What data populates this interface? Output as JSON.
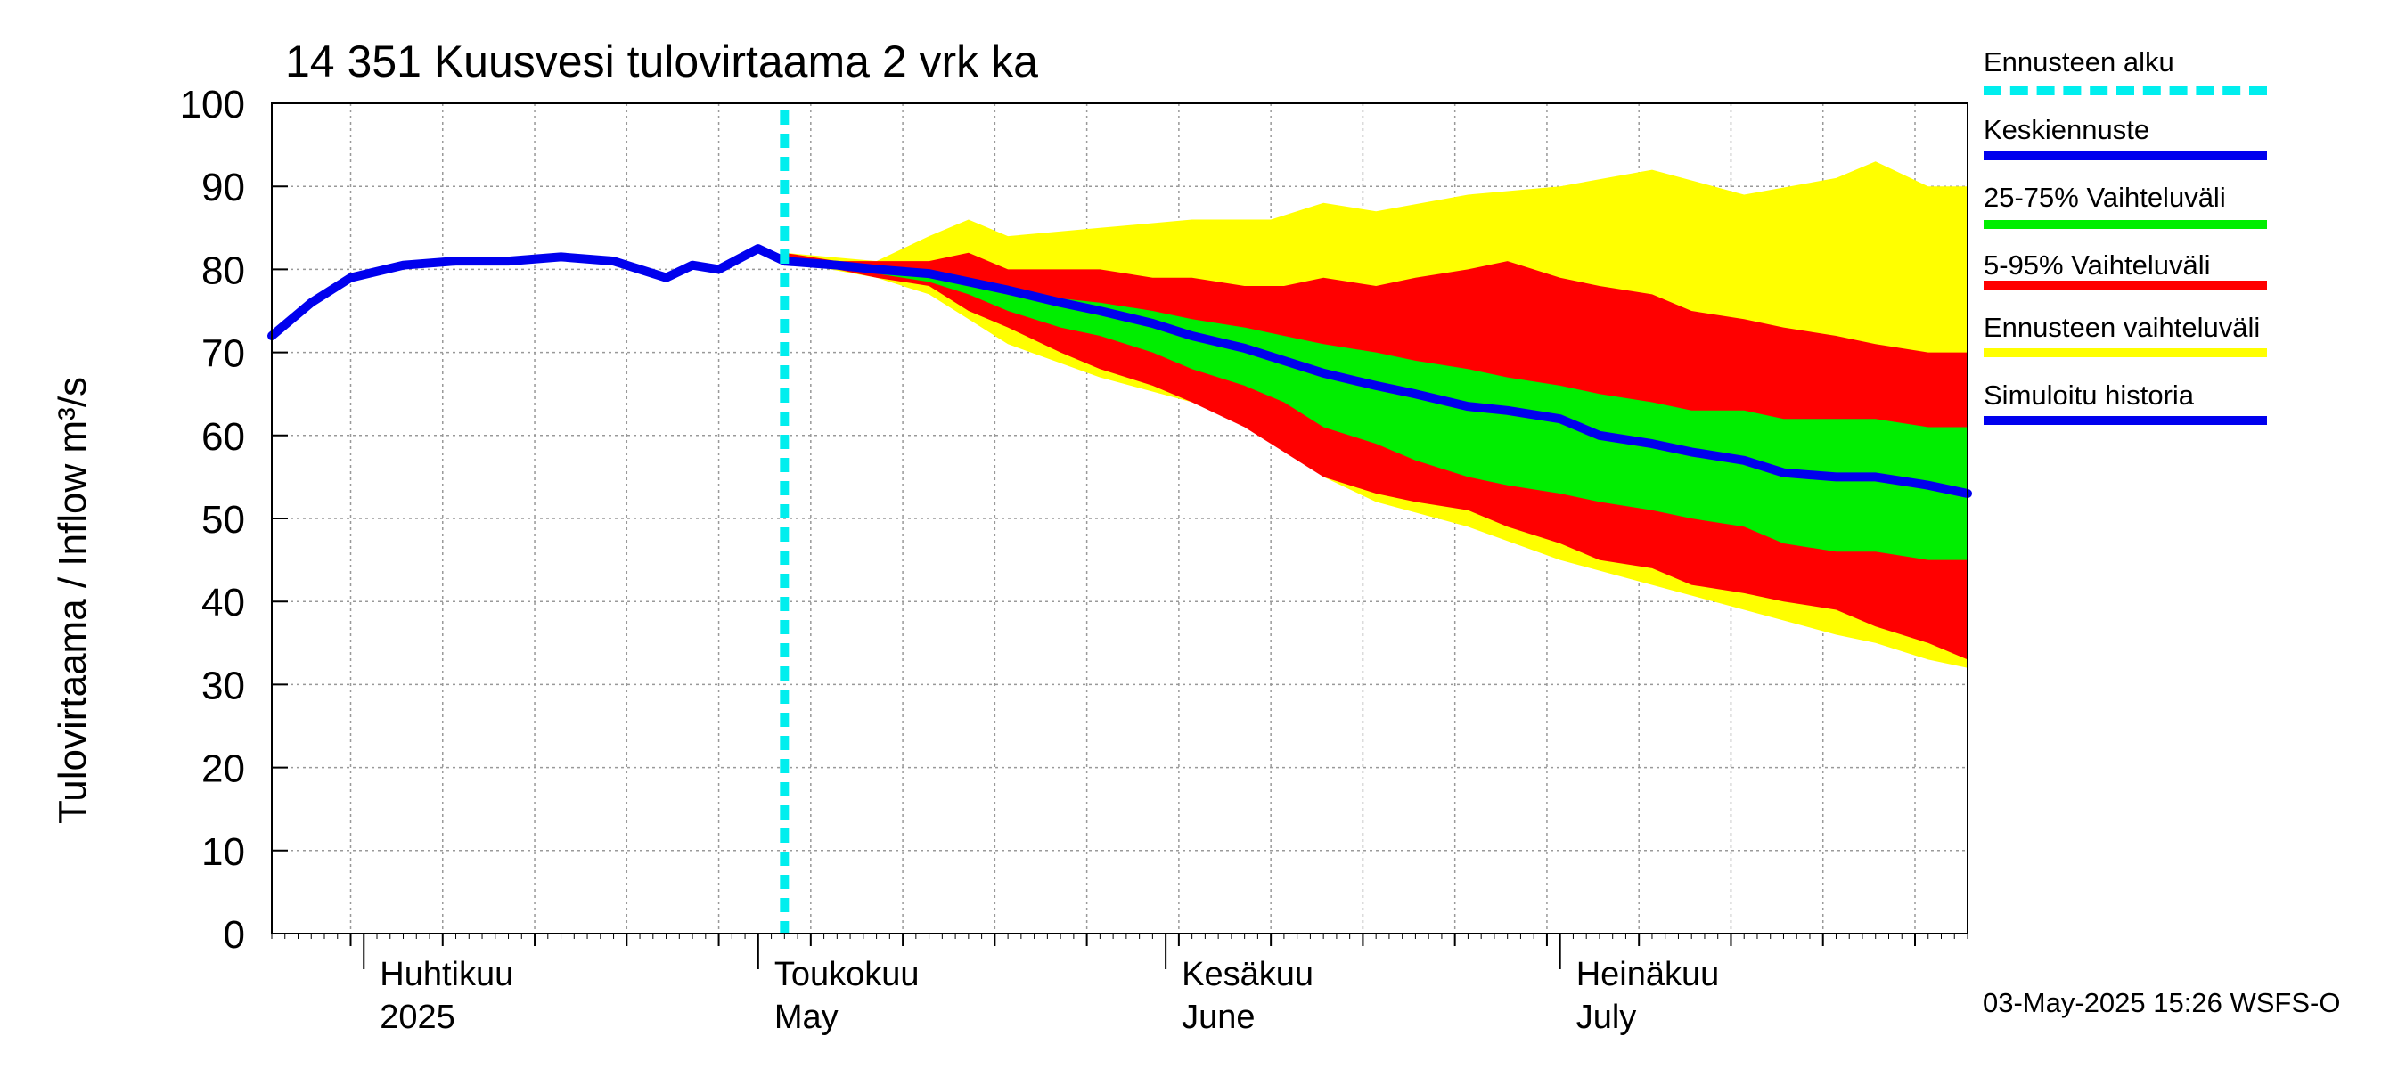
{
  "chart_data": {
    "type": "area",
    "title": "14 351 Kuusvesi tulovirtaama 2 vrk ka",
    "ylabel": "Tulovirtaama / Inflow   m³/s",
    "ylim": [
      0,
      100
    ],
    "yticks": [
      0,
      10,
      20,
      30,
      40,
      50,
      60,
      70,
      80,
      90,
      100
    ],
    "xlim": [
      "2025-03-25",
      "2025-08-01"
    ],
    "grid": true,
    "legend_placement": "right",
    "forecast_start": "2025-05-03",
    "month_labels": [
      {
        "date": "2025-04-01",
        "fi": "Huhtikuu",
        "en": "2025"
      },
      {
        "date": "2025-05-01",
        "fi": "Toukokuu",
        "en": "May"
      },
      {
        "date": "2025-06-01",
        "fi": "Kesäkuu",
        "en": "June"
      },
      {
        "date": "2025-07-01",
        "fi": "Heinäkuu",
        "en": "July"
      }
    ],
    "series": [
      {
        "name": "Ennusteen vaihteluväli",
        "color": "#ffff00",
        "x": [
          "2025-05-03",
          "2025-05-10",
          "2025-05-14",
          "2025-05-17",
          "2025-05-20",
          "2025-05-27",
          "2025-06-03",
          "2025-06-09",
          "2025-06-13",
          "2025-06-17",
          "2025-06-24",
          "2025-07-01",
          "2025-07-08",
          "2025-07-15",
          "2025-07-22",
          "2025-07-25",
          "2025-07-29",
          "2025-08-01"
        ],
        "upper": [
          82,
          81,
          84,
          86,
          84,
          85,
          86,
          86,
          88,
          87,
          89,
          90,
          92,
          89,
          91,
          93,
          90,
          90
        ],
        "lower": [
          81,
          79,
          77,
          74,
          71,
          67,
          64,
          60,
          55,
          52,
          49,
          45,
          42,
          39,
          36,
          35,
          33,
          32
        ]
      },
      {
        "name": "5-95% Vaihteluväli",
        "color": "#ff0000",
        "x": [
          "2025-05-03",
          "2025-05-07",
          "2025-05-10",
          "2025-05-14",
          "2025-05-17",
          "2025-05-20",
          "2025-05-24",
          "2025-05-27",
          "2025-05-31",
          "2025-06-03",
          "2025-06-07",
          "2025-06-10",
          "2025-06-13",
          "2025-06-17",
          "2025-06-20",
          "2025-06-24",
          "2025-06-27",
          "2025-07-01",
          "2025-07-04",
          "2025-07-08",
          "2025-07-11",
          "2025-07-15",
          "2025-07-18",
          "2025-07-22",
          "2025-07-25",
          "2025-07-29",
          "2025-08-01"
        ],
        "upper": [
          82,
          81,
          81,
          81,
          82,
          80,
          80,
          80,
          79,
          79,
          78,
          78,
          79,
          78,
          79,
          80,
          81,
          79,
          78,
          77,
          75,
          74,
          73,
          72,
          71,
          70,
          70
        ],
        "lower": [
          81,
          80,
          79,
          78,
          75,
          73,
          70,
          68,
          66,
          64,
          61,
          58,
          55,
          53,
          52,
          51,
          49,
          47,
          45,
          44,
          42,
          41,
          40,
          39,
          37,
          35,
          33
        ]
      },
      {
        "name": "25-75% Vaihteluväli",
        "color": "#00ee00",
        "x": [
          "2025-05-03",
          "2025-05-07",
          "2025-05-10",
          "2025-05-14",
          "2025-05-17",
          "2025-05-20",
          "2025-05-24",
          "2025-05-27",
          "2025-05-31",
          "2025-06-03",
          "2025-06-07",
          "2025-06-10",
          "2025-06-13",
          "2025-06-17",
          "2025-06-20",
          "2025-06-24",
          "2025-06-27",
          "2025-07-01",
          "2025-07-04",
          "2025-07-08",
          "2025-07-11",
          "2025-07-15",
          "2025-07-18",
          "2025-07-22",
          "2025-07-25",
          "2025-07-29",
          "2025-08-01"
        ],
        "upper": [
          81.5,
          80.5,
          80,
          79.5,
          78.5,
          77.5,
          76.5,
          76,
          75,
          74,
          73,
          72,
          71,
          70,
          69,
          68,
          67,
          66,
          65,
          64,
          63,
          63,
          62,
          62,
          62,
          61,
          61
        ],
        "lower": [
          81,
          80,
          79.5,
          78.5,
          77,
          75,
          73,
          72,
          70,
          68,
          66,
          64,
          61,
          59,
          57,
          55,
          54,
          53,
          52,
          51,
          50,
          49,
          47,
          46,
          46,
          45,
          45
        ]
      },
      {
        "name": "Keskiennuste",
        "color": "#0000ee",
        "x": [
          "2025-05-03",
          "2025-05-07",
          "2025-05-10",
          "2025-05-14",
          "2025-05-17",
          "2025-05-20",
          "2025-05-24",
          "2025-05-27",
          "2025-05-31",
          "2025-06-03",
          "2025-06-07",
          "2025-06-10",
          "2025-06-13",
          "2025-06-17",
          "2025-06-20",
          "2025-06-24",
          "2025-06-27",
          "2025-07-01",
          "2025-07-04",
          "2025-07-08",
          "2025-07-11",
          "2025-07-15",
          "2025-07-18",
          "2025-07-22",
          "2025-07-25",
          "2025-07-29",
          "2025-08-01"
        ],
        "y": [
          81,
          80.5,
          80,
          79.5,
          78.5,
          77.5,
          76,
          75,
          73.5,
          72,
          70.5,
          69,
          67.5,
          66,
          65,
          63.5,
          63,
          62,
          60,
          59,
          58,
          57,
          55.5,
          55,
          55,
          54,
          53
        ]
      },
      {
        "name": "Simuloitu historia",
        "color": "#0000ee",
        "x": [
          "2025-03-25",
          "2025-03-28",
          "2025-03-31",
          "2025-04-04",
          "2025-04-08",
          "2025-04-12",
          "2025-04-16",
          "2025-04-20",
          "2025-04-24",
          "2025-04-26",
          "2025-04-28",
          "2025-05-01",
          "2025-05-03"
        ],
        "y": [
          72,
          76,
          79,
          80.5,
          81,
          81,
          81.5,
          81,
          79,
          80.5,
          80,
          82.5,
          81
        ]
      }
    ],
    "legend": [
      {
        "label": "Ennusteen alku",
        "color": "#00eeee",
        "style": "dashed"
      },
      {
        "label": "Keskiennuste",
        "color": "#0000ee",
        "style": "solid"
      },
      {
        "label": "25-75% Vaihteluväli",
        "color": "#00ee00",
        "style": "solid"
      },
      {
        "label": "5-95% Vaihteluväli",
        "color": "#ff0000",
        "style": "solid"
      },
      {
        "label": "Ennusteen vaihteluväli",
        "color": "#ffff00",
        "style": "solid"
      },
      {
        "label": "Simuloitu historia",
        "color": "#0000ee",
        "style": "solid"
      }
    ]
  },
  "footer": {
    "timestamp": "03-May-2025 15:26 WSFS-O"
  }
}
